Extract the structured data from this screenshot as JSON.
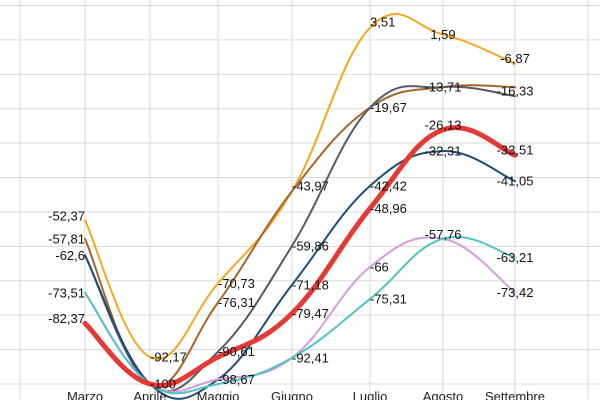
{
  "chart_data": {
    "type": "line",
    "title": "",
    "xlabel": "",
    "ylabel": "",
    "categories": [
      "Marzo",
      "Aprile",
      "Maggio",
      "Giugno",
      "Luglio",
      "Agosto",
      "Settembre"
    ],
    "ylim": [
      -100,
      10
    ],
    "grid": "horizontal and vertical",
    "series": [
      {
        "color": "#f5a623",
        "width": 2,
        "values": [
          -52.37,
          -92.17,
          -70.73,
          -43.97,
          3.51,
          1.59,
          -6.87
        ]
      },
      {
        "color": "#a8652a",
        "width": 2,
        "values": [
          -57.81,
          -100,
          -76.31,
          -43.97,
          -19.67,
          -13.71,
          -13.71
        ]
      },
      {
        "color": "#555a66",
        "width": 2,
        "values": [
          -62.6,
          -100,
          -90.61,
          -59.86,
          -19.67,
          -13.71,
          -16.33
        ]
      },
      {
        "color": "#1f4e79",
        "width": 2,
        "values": [
          -62.6,
          -100,
          -98.67,
          -71.18,
          -42.42,
          -32.31,
          -41.05
        ]
      },
      {
        "color": "#e53935",
        "width": 5,
        "values": [
          -82.37,
          -100,
          -92.17,
          -79.47,
          -48.96,
          -26.13,
          -33.51
        ]
      },
      {
        "color": "#d59be0",
        "width": 2,
        "values": [
          -73.51,
          -100,
          -98.67,
          -92.41,
          -66,
          -57.76,
          -73.42
        ]
      },
      {
        "color": "#4fc3c7",
        "width": 2,
        "values": [
          -73.51,
          -100,
          -100,
          -92.41,
          -75.31,
          -57.76,
          -63.21
        ]
      }
    ],
    "data_labels": [
      {
        "text": "-52,37",
        "x": "Marzo",
        "y": -52.37,
        "anchor": "end",
        "dy": -4
      },
      {
        "text": "-57,81",
        "x": "Marzo",
        "y": -57.81,
        "anchor": "end",
        "dy": 0
      },
      {
        "text": "-62,6",
        "x": "Marzo",
        "y": -62.6,
        "anchor": "end",
        "dy": 0
      },
      {
        "text": "-73,51",
        "x": "Marzo",
        "y": -73.51,
        "anchor": "end",
        "dy": 0
      },
      {
        "text": "-82,37",
        "x": "Marzo",
        "y": -82.37,
        "anchor": "end",
        "dy": -5
      },
      {
        "text": "-92,17",
        "x": "Aprile",
        "y": -92.17,
        "anchor": "start",
        "dy": 0
      },
      {
        "text": "-100",
        "x": "Aprile",
        "y": -100,
        "anchor": "start",
        "dy": 0
      },
      {
        "text": "-70,73",
        "x": "Maggio",
        "y": -70.73,
        "anchor": "start",
        "dy": 0
      },
      {
        "text": "-76,31",
        "x": "Maggio",
        "y": -76.31,
        "anchor": "start",
        "dy": 0
      },
      {
        "text": "-90,61",
        "x": "Maggio",
        "y": -90.61,
        "anchor": "start",
        "dy": 0
      },
      {
        "text": "-98,67",
        "x": "Maggio",
        "y": -98.67,
        "anchor": "start",
        "dy": 0
      },
      {
        "text": "-43,97",
        "x": "Giugno",
        "y": -43.97,
        "anchor": "start",
        "dy": -5
      },
      {
        "text": "-59,86",
        "x": "Giugno",
        "y": -59.86,
        "anchor": "start",
        "dy": 0
      },
      {
        "text": "-71,18",
        "x": "Giugno",
        "y": -71.18,
        "anchor": "start",
        "dy": 0
      },
      {
        "text": "-79,47",
        "x": "Giugno",
        "y": -79.47,
        "anchor": "start",
        "dy": 0
      },
      {
        "text": "-92,41",
        "x": "Giugno",
        "y": -92.41,
        "anchor": "start",
        "dy": 0
      },
      {
        "text": "3,51",
        "x": "Luglio",
        "y": 3.51,
        "anchor": "start",
        "dy": -6
      },
      {
        "text": "-19,67",
        "x": "Luglio",
        "y": -19.67,
        "anchor": "start",
        "dy": 0
      },
      {
        "text": "-42,42",
        "x": "Luglio",
        "y": -42.42,
        "anchor": "start",
        "dy": 0
      },
      {
        "text": "-48,96",
        "x": "Luglio",
        "y": -48.96,
        "anchor": "start",
        "dy": 0
      },
      {
        "text": "-66",
        "x": "Luglio",
        "y": -66,
        "anchor": "start",
        "dy": 0
      },
      {
        "text": "-75,31",
        "x": "Luglio",
        "y": -75.31,
        "anchor": "start",
        "dy": 0
      },
      {
        "text": "1,59",
        "x": "Agosto",
        "y": 1.59,
        "anchor": "middle",
        "dy": 0
      },
      {
        "text": "-13,71",
        "x": "Agosto",
        "y": -13.71,
        "anchor": "middle",
        "dy": 0
      },
      {
        "text": "-26,13",
        "x": "Agosto",
        "y": -26.13,
        "anchor": "middle",
        "dy": -5
      },
      {
        "text": "-32,31",
        "x": "Agosto",
        "y": -32.31,
        "anchor": "middle",
        "dy": 0
      },
      {
        "text": "-57,76",
        "x": "Agosto",
        "y": -57.76,
        "anchor": "middle",
        "dy": -4
      },
      {
        "text": "-6,87",
        "x": "Settembre",
        "y": -6.87,
        "anchor": "middle",
        "dy": -5
      },
      {
        "text": "-16,33",
        "x": "Settembre",
        "y": -16.33,
        "anchor": "middle",
        "dy": -5
      },
      {
        "text": "-33,51",
        "x": "Settembre",
        "y": -33.51,
        "anchor": "middle",
        "dy": -5
      },
      {
        "text": "-41,05",
        "x": "Settembre",
        "y": -41.05,
        "anchor": "middle",
        "dy": 0
      },
      {
        "text": "-63,21",
        "x": "Settembre",
        "y": -63.21,
        "anchor": "middle",
        "dy": 0
      },
      {
        "text": "-73,42",
        "x": "Settembre",
        "y": -73.42,
        "anchor": "middle",
        "dy": 0
      }
    ]
  }
}
